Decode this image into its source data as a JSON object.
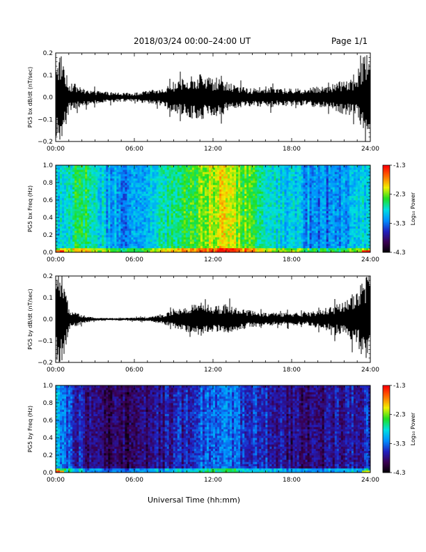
{
  "header": {
    "title": "2018/03/24  00:00–24:00 UT",
    "page": "Page 1/1"
  },
  "footer": {
    "xlabel": "Universal Time (hh:mm)"
  },
  "colors": {
    "trace": "#000000",
    "colormap": [
      "#000000",
      "#3a0050",
      "#2020c0",
      "#0090ff",
      "#00e0e0",
      "#20e020",
      "#f0f000",
      "#ff7000",
      "#ff0000"
    ]
  },
  "chart_data": [
    {
      "type": "line",
      "ylabel": "PG5 bx dB/dt (nT/sec)",
      "xlim": [
        0,
        24
      ],
      "ylim": [
        -0.2,
        0.2
      ],
      "x_ticks": [
        "00:00",
        "06:00",
        "12:00",
        "18:00",
        "24:00"
      ],
      "y_ticks": [
        "0.2",
        "0.1",
        "0.0",
        "−0.1",
        "−0.2"
      ],
      "envelope": {
        "hours": [
          0,
          0.5,
          1.0,
          1.5,
          2.0,
          3.0,
          4.0,
          5.0,
          6.0,
          7.0,
          8.0,
          9.0,
          10.0,
          11.0,
          12.0,
          12.5,
          13.0,
          14.0,
          15.0,
          16.0,
          17.0,
          18.0,
          19.0,
          20.0,
          21.0,
          22.0,
          23.0,
          23.5,
          24.0
        ],
        "amplitude": [
          0.2,
          0.2,
          0.07,
          0.06,
          0.04,
          0.03,
          0.025,
          0.02,
          0.02,
          0.03,
          0.04,
          0.07,
          0.09,
          0.11,
          0.08,
          0.1,
          0.07,
          0.05,
          0.04,
          0.05,
          0.04,
          0.04,
          0.04,
          0.05,
          0.06,
          0.08,
          0.09,
          0.2,
          0.2
        ]
      }
    },
    {
      "type": "heatmap",
      "ylabel": "PG5 bx Freq (Hz)",
      "xlim": [
        0,
        24
      ],
      "ylim": [
        0.0,
        1.0
      ],
      "x_ticks": [
        "00:00",
        "06:00",
        "12:00",
        "18:00",
        "24:00"
      ],
      "y_ticks": [
        "1.0",
        "0.8",
        "0.6",
        "0.4",
        "0.2",
        "0.0"
      ],
      "colorbar": {
        "label": "Log₁₀ Power",
        "range": [
          -4.3,
          -1.3
        ],
        "ticks": [
          "-1.3",
          "-2.3",
          "-3.3",
          "-4.3"
        ]
      },
      "activity": {
        "hours": [
          0,
          1,
          2,
          3,
          4,
          5,
          6,
          7,
          8,
          9,
          10,
          11,
          12,
          13,
          14,
          15,
          16,
          17,
          18,
          19,
          20,
          21,
          22,
          23,
          24
        ],
        "level": [
          0.45,
          0.5,
          0.6,
          0.55,
          0.4,
          0.38,
          0.4,
          0.45,
          0.5,
          0.55,
          0.6,
          0.68,
          0.72,
          0.75,
          0.68,
          0.6,
          0.55,
          0.5,
          0.45,
          0.4,
          0.35,
          0.35,
          0.4,
          0.45,
          0.45
        ]
      }
    },
    {
      "type": "line",
      "ylabel": "PG5 by dB/dt (nT/sec)",
      "xlim": [
        0,
        24
      ],
      "ylim": [
        -0.2,
        0.2
      ],
      "x_ticks": [
        "00:00",
        "06:00",
        "12:00",
        "18:00",
        "24:00"
      ],
      "y_ticks": [
        "0.2",
        "0.1",
        "0.0",
        "−0.1",
        "−0.2"
      ],
      "envelope": {
        "hours": [
          0,
          0.5,
          1.0,
          1.5,
          2.0,
          3.0,
          4.0,
          5.0,
          6.0,
          7.0,
          8.0,
          9.0,
          10.0,
          11.0,
          12.0,
          13.0,
          14.0,
          15.0,
          16.0,
          17.0,
          18.0,
          19.0,
          20.0,
          21.0,
          22.0,
          23.0,
          23.5,
          24.0
        ],
        "amplitude": [
          0.2,
          0.2,
          0.06,
          0.04,
          0.02,
          0.008,
          0.006,
          0.006,
          0.008,
          0.01,
          0.02,
          0.04,
          0.06,
          0.08,
          0.06,
          0.07,
          0.05,
          0.04,
          0.03,
          0.03,
          0.03,
          0.03,
          0.04,
          0.06,
          0.08,
          0.12,
          0.2,
          0.2
        ]
      }
    },
    {
      "type": "heatmap",
      "ylabel": "PG5 by Freq (Hz)",
      "xlim": [
        0,
        24
      ],
      "ylim": [
        0.0,
        1.0
      ],
      "x_ticks": [
        "00:00",
        "06:00",
        "12:00",
        "18:00",
        "24:00"
      ],
      "y_ticks": [
        "1.0",
        "0.8",
        "0.6",
        "0.4",
        "0.2",
        "0.0"
      ],
      "colorbar": {
        "label": "Log₁₀ Power",
        "range": [
          -4.3,
          -1.3
        ],
        "ticks": [
          "-1.3",
          "-2.3",
          "-3.3",
          "-4.3"
        ]
      },
      "activity": {
        "hours": [
          0,
          1,
          2,
          3,
          4,
          5,
          6,
          7,
          8,
          9,
          10,
          11,
          12,
          13,
          14,
          15,
          16,
          17,
          18,
          19,
          20,
          21,
          22,
          23,
          24
        ],
        "level": [
          0.42,
          0.3,
          0.22,
          0.15,
          0.12,
          0.12,
          0.13,
          0.15,
          0.2,
          0.22,
          0.25,
          0.3,
          0.33,
          0.32,
          0.3,
          0.27,
          0.25,
          0.2,
          0.17,
          0.16,
          0.15,
          0.18,
          0.2,
          0.22,
          0.25
        ]
      }
    }
  ]
}
